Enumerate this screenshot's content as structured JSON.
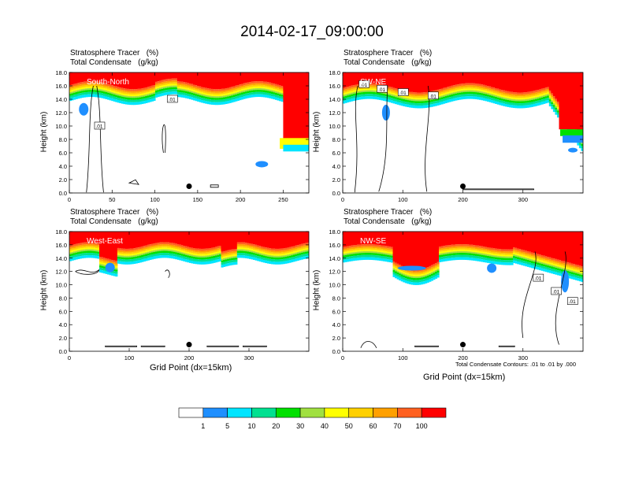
{
  "title": "2014-02-17_09:00:00",
  "palette": [
    "#ffffff",
    "#1f8fff",
    "#00e5ff",
    "#00e090",
    "#00e000",
    "#a0e040",
    "#ffff00",
    "#ffd000",
    "#ffa000",
    "#ff6020",
    "#ff0000"
  ],
  "contour_note": "Total Condensate Contours: .01 to .01 by .000",
  "chart_data": [
    {
      "type": "heatmap",
      "header_line1": "Stratosphere Tracer   (%)",
      "header_line2": "Total Condensate   (g/kg)",
      "panel_label": "South-North",
      "ylabel": "Height (km)",
      "xlabel": "",
      "xlim": [
        0,
        280
      ],
      "ylim": [
        0,
        18
      ],
      "xticks": [
        "0",
        "50",
        "100",
        "150",
        "200",
        "250"
      ],
      "yticks": [
        "0.0",
        "2.0",
        "4.0",
        "6.0",
        "8.0",
        "10.0",
        "12.0",
        "14.0",
        "16.0",
        "18.0"
      ],
      "marker_x": 140,
      "marker_y": 1.0,
      "contour_labels": [
        ".01",
        ".01"
      ]
    },
    {
      "type": "heatmap",
      "header_line1": "Stratosphere Tracer   (%)",
      "header_line2": "Total Condensate   (g/kg)",
      "panel_label": "SW-NE",
      "ylabel": "Height (km)",
      "xlabel": "",
      "xlim": [
        0,
        400
      ],
      "ylim": [
        0,
        18
      ],
      "xticks": [
        "0",
        "100",
        "200",
        "300"
      ],
      "yticks": [
        "0.0",
        "2.0",
        "4.0",
        "6.0",
        "8.0",
        "10.0",
        "12.0",
        "14.0",
        "16.0",
        "18.0"
      ],
      "marker_x": 200,
      "marker_y": 1.0,
      "contour_labels": [
        ".01",
        ".01",
        ".01",
        ".01"
      ]
    },
    {
      "type": "heatmap",
      "header_line1": "Stratosphere Tracer   (%)",
      "header_line2": "Total Condensate   (g/kg)",
      "panel_label": "West-East",
      "ylabel": "Height (km)",
      "xlabel": "Grid Point (dx=15km)",
      "xlim": [
        0,
        400
      ],
      "ylim": [
        0,
        18
      ],
      "xticks": [
        "0",
        "100",
        "200",
        "300"
      ],
      "yticks": [
        "0.0",
        "2.0",
        "4.0",
        "6.0",
        "8.0",
        "10.0",
        "12.0",
        "14.0",
        "16.0",
        "18.0"
      ],
      "marker_x": 200,
      "marker_y": 1.0,
      "contour_labels": []
    },
    {
      "type": "heatmap",
      "header_line1": "Stratosphere Tracer   (%)",
      "header_line2": "Total Condensate   (g/kg)",
      "panel_label": "NW-SE",
      "ylabel": "Height (km)",
      "xlabel": "Grid Point (dx=15km)",
      "xlim": [
        0,
        400
      ],
      "ylim": [
        0,
        18
      ],
      "xticks": [
        "0",
        "100",
        "200",
        "300"
      ],
      "yticks": [
        "0.0",
        "2.0",
        "4.0",
        "6.0",
        "8.0",
        "10.0",
        "12.0",
        "14.0",
        "16.0",
        "18.0"
      ],
      "marker_x": 200,
      "marker_y": 1.0,
      "contour_labels": [
        ".01",
        ".01",
        ".01"
      ]
    }
  ],
  "colorbar": {
    "labels": [
      "1",
      "5",
      "10",
      "20",
      "30",
      "40",
      "50",
      "60",
      "70",
      "100"
    ]
  }
}
